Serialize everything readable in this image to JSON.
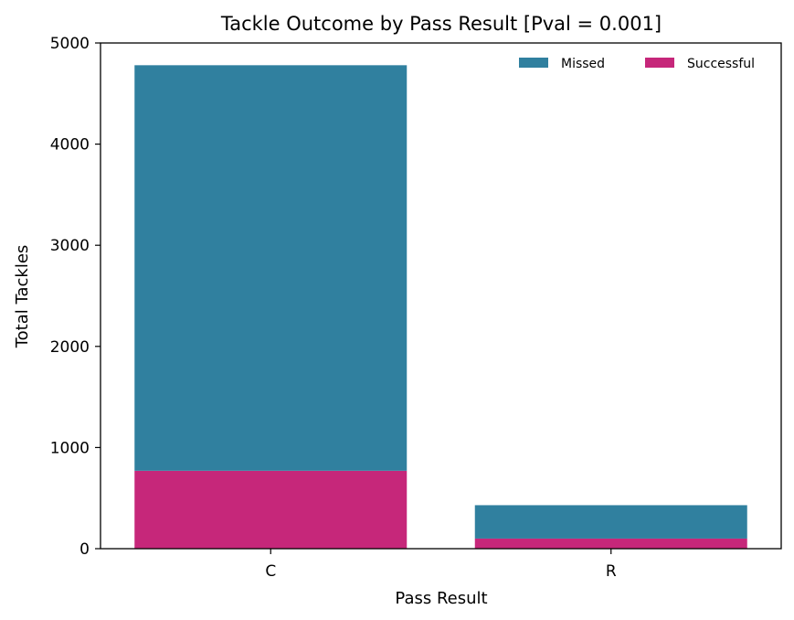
{
  "chart_data": {
    "type": "bar",
    "stacked": true,
    "title": "Tackle Outcome by Pass Result [Pval = 0.001]",
    "xlabel": "Pass Result",
    "ylabel": "Total Tackles",
    "categories": [
      "C",
      "R"
    ],
    "series": [
      {
        "name": "Successful",
        "values": [
          770,
          100
        ],
        "color": "#c6277a"
      },
      {
        "name": "Missed",
        "values": [
          4010,
          330
        ],
        "color": "#30809f"
      }
    ],
    "ylim": [
      0,
      5000
    ],
    "yticks": [
      0,
      1000,
      2000,
      3000,
      4000,
      5000
    ],
    "grid": false,
    "legend": {
      "placement": "top-right",
      "order": [
        "Missed",
        "Successful"
      ],
      "columns": 2
    }
  }
}
